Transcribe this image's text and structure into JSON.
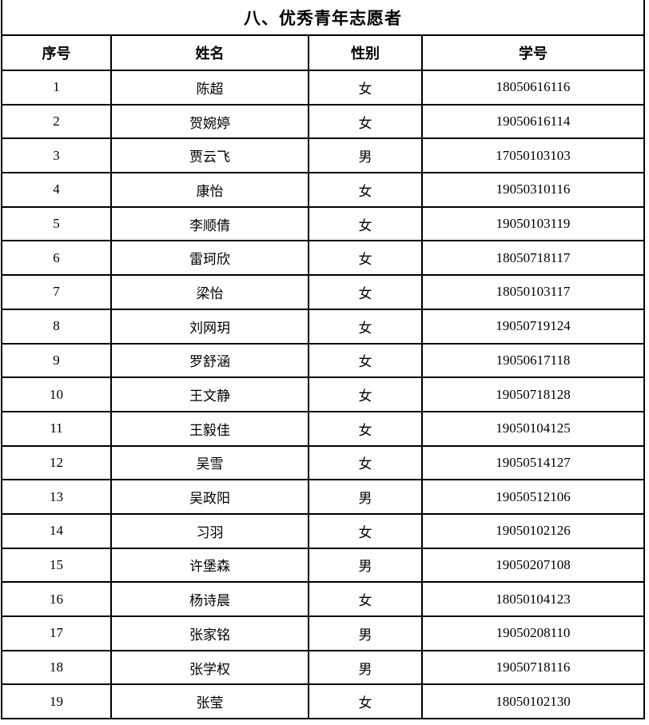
{
  "title": "八、优秀青年志愿者",
  "colors": {
    "background": "#ffffff",
    "border": "#000000",
    "text": "#000000"
  },
  "table": {
    "columns": [
      {
        "key": "index",
        "label": "序号"
      },
      {
        "key": "name",
        "label": "姓名"
      },
      {
        "key": "gender",
        "label": "性别"
      },
      {
        "key": "id",
        "label": "学号"
      }
    ],
    "rows": [
      {
        "index": "1",
        "name": "陈超",
        "gender": "女",
        "id": "18050616116"
      },
      {
        "index": "2",
        "name": "贺婉婷",
        "gender": "女",
        "id": "19050616114"
      },
      {
        "index": "3",
        "name": "贾云飞",
        "gender": "男",
        "id": "17050103103"
      },
      {
        "index": "4",
        "name": "康怡",
        "gender": "女",
        "id": "19050310116"
      },
      {
        "index": "5",
        "name": "李顺倩",
        "gender": "女",
        "id": "19050103119"
      },
      {
        "index": "6",
        "name": "雷珂欣",
        "gender": "女",
        "id": "18050718117"
      },
      {
        "index": "7",
        "name": "梁怡",
        "gender": "女",
        "id": "18050103117"
      },
      {
        "index": "8",
        "name": "刘网玥",
        "gender": "女",
        "id": "19050719124"
      },
      {
        "index": "9",
        "name": "罗舒涵",
        "gender": "女",
        "id": "19050617118"
      },
      {
        "index": "10",
        "name": "王文静",
        "gender": "女",
        "id": "19050718128"
      },
      {
        "index": "11",
        "name": "王毅佳",
        "gender": "女",
        "id": "19050104125"
      },
      {
        "index": "12",
        "name": "吴雪",
        "gender": "女",
        "id": "19050514127"
      },
      {
        "index": "13",
        "name": "吴政阳",
        "gender": "男",
        "id": "19050512106"
      },
      {
        "index": "14",
        "name": "习羽",
        "gender": "女",
        "id": "19050102126"
      },
      {
        "index": "15",
        "name": "许堡森",
        "gender": "男",
        "id": "19050207108"
      },
      {
        "index": "16",
        "name": "杨诗晨",
        "gender": "女",
        "id": "18050104123"
      },
      {
        "index": "17",
        "name": "张家铭",
        "gender": "男",
        "id": "19050208110"
      },
      {
        "index": "18",
        "name": "张学权",
        "gender": "男",
        "id": "19050718116"
      },
      {
        "index": "19",
        "name": "张莹",
        "gender": "女",
        "id": "18050102130"
      }
    ]
  }
}
